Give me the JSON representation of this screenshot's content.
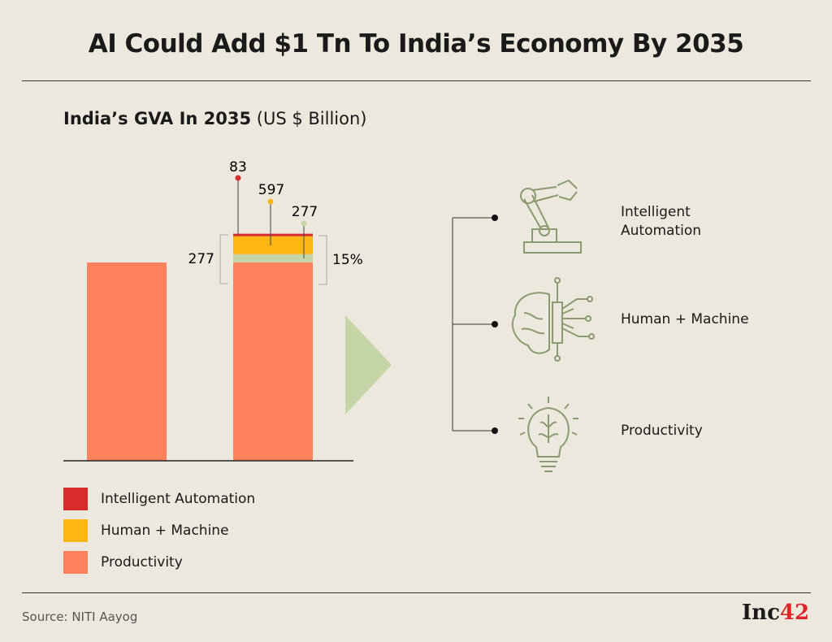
{
  "title": "AI Could Add $1 Tn To India’s Economy By 2035",
  "subtitle_bold": "India’s GVA In 2035",
  "subtitle_unit": "(US $ Billion)",
  "source": "Source: NITI Aayog",
  "logo": {
    "text": "Inc",
    "num": "42"
  },
  "colors": {
    "intelligent_automation": "#d92b2b",
    "human_machine": "#ffb612",
    "productivity": "#fe815b",
    "extra": "#c6d5a8",
    "arrow": "#c6d5a8"
  },
  "chart_data": {
    "type": "bar",
    "stacked": true,
    "categories": [
      "",
      ""
    ],
    "series": [
      {
        "name": "Productivity",
        "values": [
          6600,
          6600
        ]
      },
      {
        "name": "",
        "values": [
          0,
          277
        ]
      },
      {
        "name": "Human + Machine",
        "values": [
          0,
          597
        ]
      },
      {
        "name": "Intelligent Automation",
        "values": [
          0,
          83
        ]
      }
    ],
    "annotations": {
      "ia": "83",
      "hm": "597",
      "green": "277",
      "bracket_left": "277",
      "bracket_right": "15%"
    },
    "legend": [
      "Intelligent Automation",
      "Human + Machine",
      "Productivity"
    ],
    "legend_position": "bottom-left",
    "grid": false
  },
  "icons": [
    {
      "name": "robot-arm-icon",
      "label": "Intelligent Automation",
      "lines": [
        "Intelligent",
        "Automation"
      ]
    },
    {
      "name": "brain-circuit-icon",
      "label": "Human + Machine",
      "lines": [
        "Human + Machine"
      ]
    },
    {
      "name": "lightbulb-brain-icon",
      "label": "Productivity",
      "lines": [
        "Productivity"
      ]
    }
  ]
}
